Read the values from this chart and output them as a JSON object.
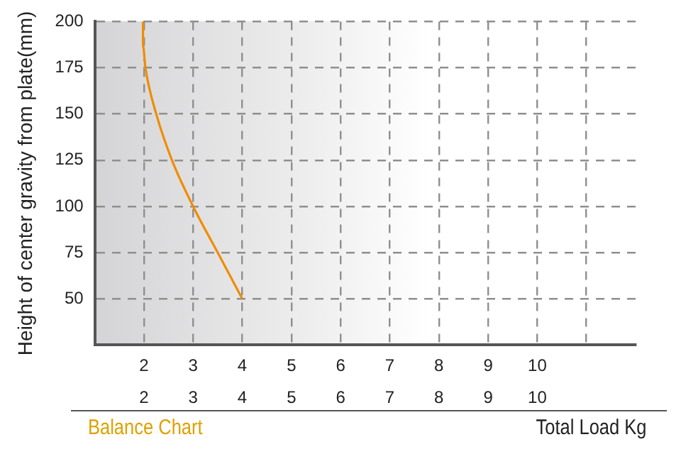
{
  "chart_data": {
    "type": "line",
    "title": "Balance Chart",
    "xlabel": "Total Load Kg",
    "ylabel": "Height of center gravity from plate(mm)",
    "series": [
      {
        "color": "#f08c00",
        "x": [
          1.98,
          1.98,
          2.03,
          2.25,
          2.57,
          3.0,
          3.5,
          4.0
        ],
        "values": [
          200,
          187,
          175,
          150,
          125,
          100,
          75,
          50
        ]
      }
    ],
    "xlim": [
      1,
      12
    ],
    "xticks": [
      2,
      3,
      4,
      5,
      6,
      7,
      8,
      9,
      10,
      {
        "value": 11,
        "label": null
      }
    ],
    "x2lim": [
      1,
      12
    ],
    "x2ticks": [
      2,
      3,
      4,
      5,
      6,
      7,
      8,
      9,
      10
    ],
    "ylim": [
      25,
      200
    ],
    "yticks": [
      {
        "value": 25,
        "label": null
      },
      50,
      75,
      100,
      125,
      150,
      175,
      200
    ],
    "grid": true,
    "marker": "none",
    "line_style": "solid",
    "legend": false
  }
}
